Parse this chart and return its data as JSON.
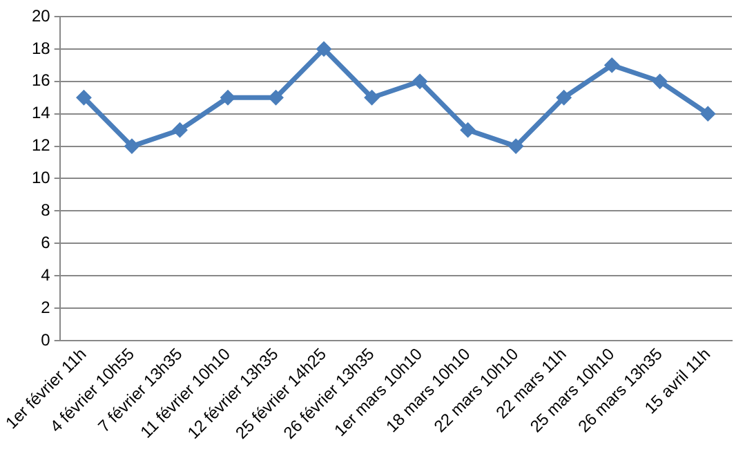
{
  "chart_data": {
    "type": "line",
    "categories": [
      "1er février 11h",
      "4 février 10h55",
      "7 février 13h35",
      "11 février 10h10",
      "12 février 13h35",
      "25 février 14h25",
      "26 février 13h35",
      "1er mars 10h10",
      "18 mars 10h10",
      "22 mars 10h10",
      "22 mars 11h",
      "25 mars 10h10",
      "26 mars 13h35",
      "15 avril 11h"
    ],
    "series": [
      {
        "color": "#4a7ebb",
        "values": [
          15,
          12,
          13,
          15,
          15,
          18,
          15,
          16,
          13,
          12,
          15,
          17,
          16,
          14
        ]
      }
    ],
    "ylim": [
      0,
      20
    ],
    "yticks": [
      0,
      2,
      4,
      6,
      8,
      10,
      12,
      14,
      16,
      18,
      20
    ],
    "grid": "y",
    "legend": false,
    "marker": "diamond",
    "line_style": "solid"
  }
}
